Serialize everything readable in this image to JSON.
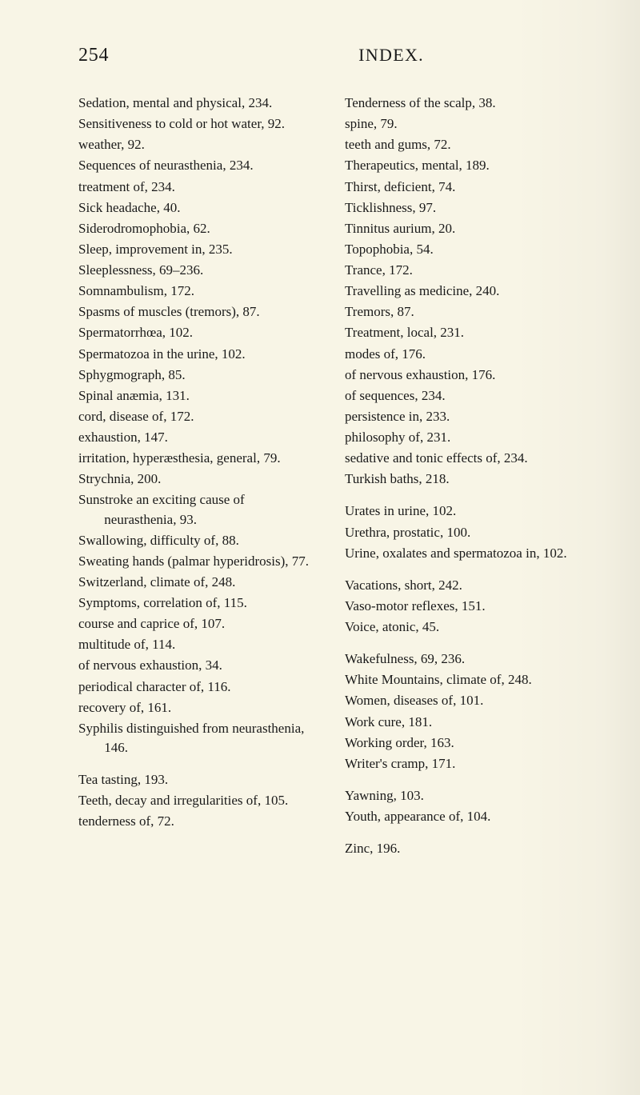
{
  "page_number": "254",
  "running_title": "INDEX.",
  "bg_color": "#f8f5e6",
  "text_color": "#1a1a1a",
  "font_family": "Century Schoolbook, Bookman Old Style, Georgia, serif",
  "base_fontsize": 17,
  "line_height": 1.42,
  "hanging_indent_em": 1.9,
  "columns": {
    "left": [
      "Sedation, mental and physical, 234.",
      "Sensitiveness to cold or hot water, 92.",
      "weather, 92.",
      "Sequences of neurasthenia, 234.",
      "treatment of, 234.",
      "Sick headache, 40.",
      "Siderodromophobia, 62.",
      "Sleep, improvement in, 235.",
      "Sleeplessness, 69–236.",
      "Somnambulism, 172.",
      "Spasms of muscles (tremors), 87.",
      "Spermatorrhœa, 102.",
      "Spermatozoa in the urine, 102.",
      "Sphygmograph, 85.",
      "Spinal anæmia, 131.",
      "cord, disease of, 172.",
      "exhaustion, 147.",
      "irritation, hyperæsthesia, general, 79.",
      "Strychnia, 200.",
      "Sunstroke an exciting cause of neurasthenia, 93.",
      "Swallowing, difficulty of, 88.",
      "Sweating hands (palmar hyperidrosis), 77.",
      "Switzerland, climate of, 248.",
      "Symptoms, correlation of, 115.",
      "course and caprice of, 107.",
      "multitude of, 114.",
      "of nervous exhaustion, 34.",
      "periodical character of, 116.",
      "recovery of, 161.",
      "Syphilis distinguished from neurasthenia, 146.",
      "",
      "Tea tasting, 193.",
      "Teeth, decay and irregularities of, 105.",
      "tenderness of, 72."
    ],
    "right": [
      "Tenderness of the scalp, 38.",
      "spine, 79.",
      "teeth and gums, 72.",
      "Therapeutics, mental, 189.",
      "Thirst, deficient, 74.",
      "Ticklishness, 97.",
      "Tinnitus aurium, 20.",
      "Topophobia, 54.",
      "Trance, 172.",
      "Travelling as medicine, 240.",
      "Tremors, 87.",
      "Treatment, local, 231.",
      "modes of, 176.",
      "of nervous exhaustion, 176.",
      "of sequences, 234.",
      "persistence in, 233.",
      "philosophy of, 231.",
      "sedative and tonic effects of, 234.",
      "Turkish baths, 218.",
      "",
      "Urates in urine, 102.",
      "Urethra, prostatic, 100.",
      "Urine, oxalates and spermatozoa in, 102.",
      "",
      "Vacations, short, 242.",
      "Vaso-motor reflexes, 151.",
      "Voice, atonic, 45.",
      "",
      "Wakefulness, 69, 236.",
      "White Mountains, climate of, 248.",
      "Women, diseases of, 101.",
      "Work cure, 181.",
      "Working order, 163.",
      "Writer's cramp, 171.",
      "",
      "Yawning, 103.",
      "Youth, appearance of, 104.",
      "",
      "Zinc, 196."
    ]
  }
}
